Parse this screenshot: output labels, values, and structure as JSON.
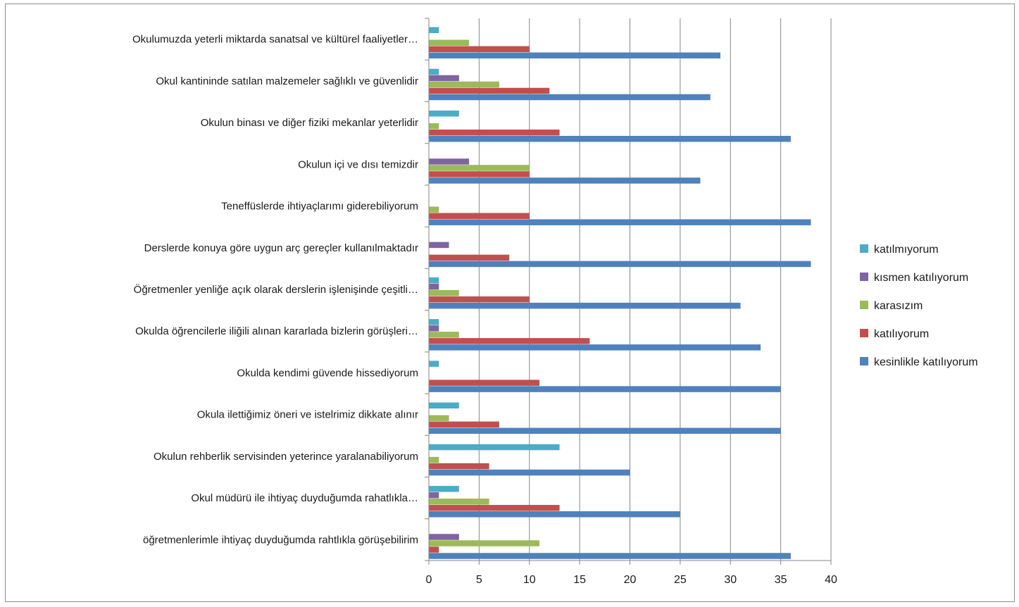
{
  "chart_data": {
    "type": "bar",
    "orientation": "horizontal",
    "categories": [
      "Okulumuzda yeterli miktarda sanatsal ve kültürel faaliyetler…",
      "Okul kantininde satılan malzemeler sağlıklı ve güvenlidir",
      "Okulun binası ve diğer fiziki mekanlar yeterlidir",
      "Okulun içi ve dısı temizdir",
      "Teneffüslerde ihtiyaçlarımı giderebiliyorum",
      "Derslerde konuya göre uygun arç gereçler kullanılmaktadır",
      "Öğretmenler yenliğe açık olarak derslerin işlenişinde çeşitli…",
      "Okulda öğrencilerle iliğili alınan kararlada bizlerin görüşleri…",
      "Okulda kendimi güvende hissediyorum",
      "Okula ilettiğimiz öneri ve istelrimiz dikkate alınır",
      "Okulun rehberlik servisinden yeterince yaralanabiliyorum",
      "Okul müdürü ile ihtiyaç duyduğumda rahatlıkla…",
      "öğretmenlerimle ihtiyaç duyduğumda rahtlıkla görüşebilirim"
    ],
    "series": [
      {
        "name": "katılmıyorum",
        "color": "#4bacc6",
        "values": [
          1,
          1,
          3,
          0,
          0,
          0,
          1,
          1,
          1,
          3,
          13,
          3,
          0
        ]
      },
      {
        "name": "kısmen katılıyorum",
        "color": "#8064a2",
        "values": [
          0,
          3,
          0,
          4,
          0,
          2,
          1,
          1,
          0,
          0,
          0,
          1,
          3
        ]
      },
      {
        "name": "karasızım",
        "color": "#9bbb59",
        "values": [
          4,
          7,
          1,
          10,
          1,
          0,
          3,
          3,
          0,
          2,
          1,
          6,
          11
        ]
      },
      {
        "name": "katılıyorum",
        "color": "#c0504d",
        "values": [
          10,
          12,
          13,
          10,
          10,
          8,
          10,
          16,
          11,
          7,
          6,
          13,
          1
        ]
      },
      {
        "name": "kesinlikle katılıyorum",
        "color": "#4f81bd",
        "values": [
          29,
          28,
          36,
          27,
          38,
          38,
          31,
          33,
          35,
          35,
          20,
          25,
          36
        ]
      }
    ],
    "xlim": [
      0,
      40
    ],
    "x_ticks": [
      "0",
      "5",
      "10",
      "15",
      "20",
      "25",
      "30",
      "35",
      "40"
    ],
    "grid": true,
    "legend_position": "right",
    "title": "",
    "xlabel": "",
    "ylabel": ""
  }
}
